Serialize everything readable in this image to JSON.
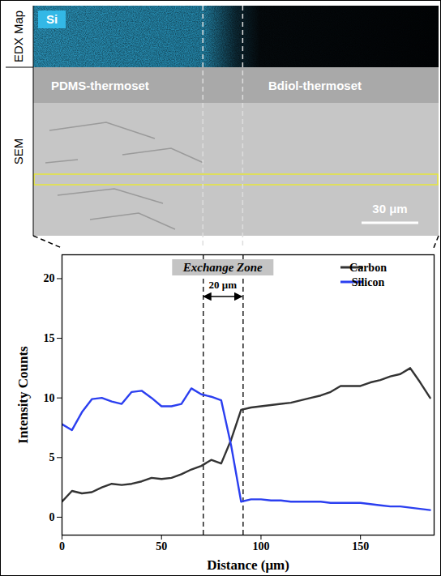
{
  "images": {
    "edx_label": "EDX Map",
    "sem_label": "SEM",
    "element": "Si",
    "left_material": "PDMS-thermoset",
    "right_material": "Bdiol-thermoset",
    "scale_bar": "30 μm"
  },
  "chart_data": {
    "type": "line",
    "x_label": "Distance (μm)",
    "y_label": "Intensity Counts",
    "x": [
      0,
      5,
      10,
      15,
      20,
      25,
      30,
      35,
      40,
      45,
      50,
      55,
      60,
      65,
      70,
      75,
      80,
      85,
      90,
      95,
      100,
      105,
      110,
      115,
      120,
      125,
      130,
      135,
      140,
      145,
      150,
      155,
      160,
      165,
      170,
      175,
      180,
      185
    ],
    "series": [
      {
        "name": "Carbon",
        "color": "#333333",
        "values": [
          1.3,
          2.2,
          2,
          2.1,
          2.5,
          2.8,
          2.7,
          2.8,
          3,
          3.3,
          3.2,
          3.3,
          3.6,
          4,
          4.3,
          4.8,
          4.5,
          6.5,
          9,
          9.2,
          9.3,
          9.4,
          9.5,
          9.6,
          9.8,
          10,
          10.2,
          10.5,
          11,
          11,
          11,
          11.3,
          11.5,
          11.8,
          12,
          12.5,
          11.3,
          10
        ]
      },
      {
        "name": "Silicon",
        "color": "#2b3ff0",
        "values": [
          7.8,
          7.3,
          8.8,
          9.9,
          10,
          9.7,
          9.5,
          10.5,
          10.6,
          10,
          9.3,
          9.3,
          9.5,
          10.8,
          10.3,
          10.1,
          9.8,
          6,
          1.3,
          1.5,
          1.5,
          1.4,
          1.4,
          1.3,
          1.3,
          1.3,
          1.3,
          1.2,
          1.2,
          1.2,
          1.2,
          1.1,
          1.0,
          0.9,
          0.9,
          0.8,
          0.7,
          0.6
        ]
      }
    ],
    "xlim": [
      0,
      187
    ],
    "ylim": [
      -1.5,
      22
    ],
    "xticks": [
      0,
      50,
      100,
      150
    ],
    "yticks": [
      0,
      5,
      10,
      15,
      20
    ],
    "legend": "top-right",
    "annotations": [
      {
        "text": "Exchange Zone",
        "x0": 71,
        "x1": 91
      },
      {
        "text": "20 μm",
        "x0": 71,
        "x1": 91
      }
    ]
  }
}
